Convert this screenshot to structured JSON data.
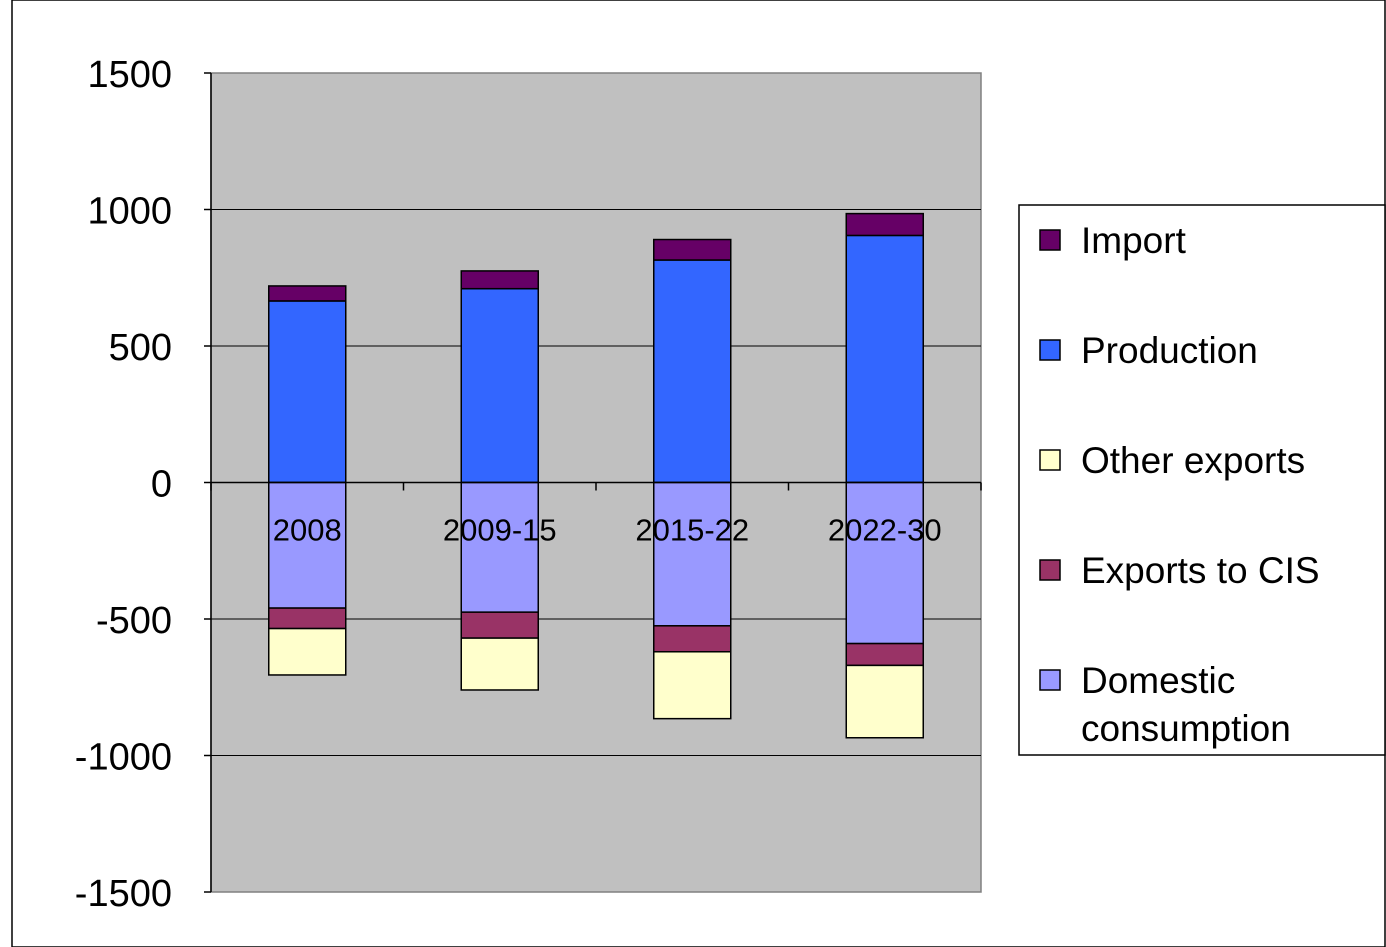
{
  "chart_data": {
    "type": "bar",
    "stacked": true,
    "categories": [
      "2008",
      "2009-15",
      "2015-22",
      "2022-30"
    ],
    "ylim": [
      -1500,
      1500
    ],
    "yticks": [
      "1500",
      "1000",
      "500",
      "0",
      "-500",
      "-1000",
      "-1500"
    ],
    "ytick_values": [
      1500,
      1000,
      500,
      0,
      -500,
      -1000,
      -1500
    ],
    "grid": true,
    "legend_position": "right",
    "series": [
      {
        "name": "Import",
        "color": "#660066",
        "values": [
          55,
          65,
          75,
          80
        ]
      },
      {
        "name": "Production",
        "color": "#3366ff",
        "values": [
          665,
          710,
          815,
          905
        ]
      },
      {
        "name": "Other exports",
        "color": "#ffffcc",
        "values": [
          -170,
          -190,
          -245,
          -265
        ]
      },
      {
        "name": "Exports to CIS",
        "color": "#993366",
        "values": [
          -75,
          -95,
          -95,
          -80
        ]
      },
      {
        "name": "Domestic consumption",
        "color": "#9999ff",
        "values": [
          -460,
          -475,
          -525,
          -590
        ]
      }
    ],
    "legend_lines": [
      [
        "Import"
      ],
      [
        "Production"
      ],
      [
        "Other exports"
      ],
      [
        "Exports to CIS"
      ],
      [
        "Domestic",
        "consumption"
      ]
    ],
    "plot_background": "#c0c0c0"
  }
}
